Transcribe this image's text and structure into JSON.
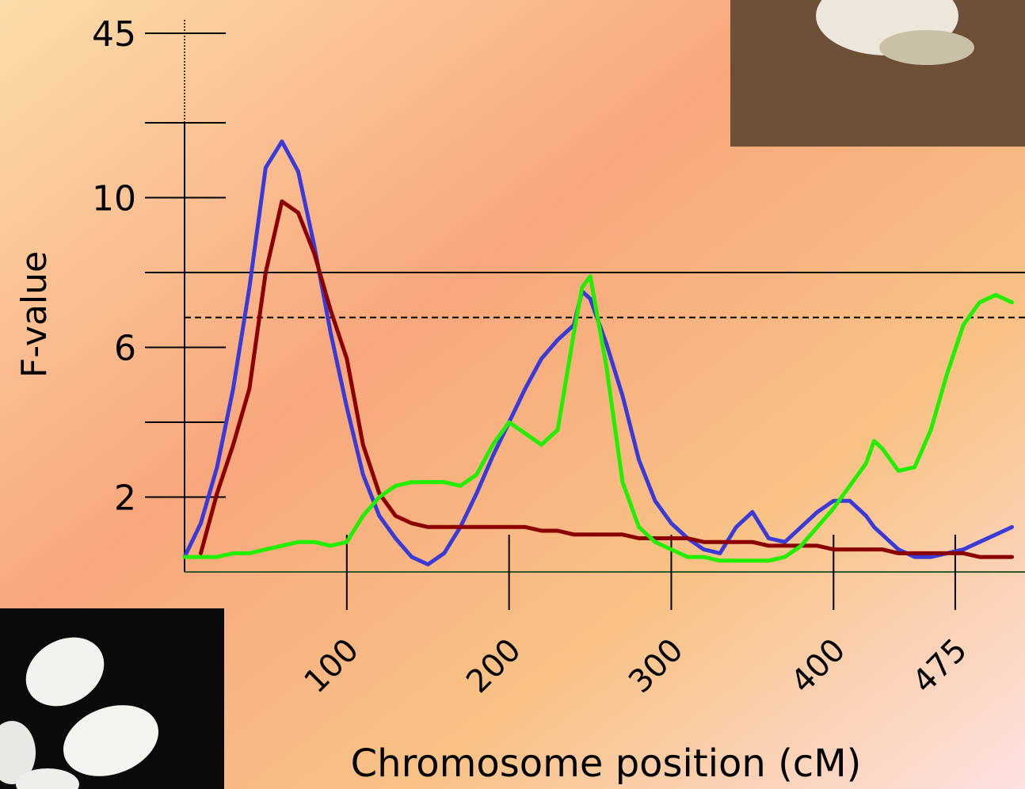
{
  "chart_data": {
    "type": "line",
    "xlabel": "Chromosome position (cM)",
    "ylabel": "F-value",
    "x": [
      0,
      10,
      20,
      30,
      40,
      50,
      60,
      70,
      80,
      90,
      100,
      110,
      120,
      130,
      140,
      150,
      160,
      170,
      180,
      190,
      200,
      210,
      220,
      230,
      240,
      245,
      250,
      260,
      270,
      280,
      290,
      300,
      310,
      320,
      330,
      340,
      350,
      360,
      370,
      380,
      390,
      400,
      410,
      420,
      425,
      430,
      440,
      450,
      460,
      470,
      480,
      490,
      500,
      510
    ],
    "series": [
      {
        "color": "#3a3ad8",
        "values": [
          0.4,
          1.3,
          2.8,
          4.9,
          7.6,
          10.8,
          11.5,
          10.7,
          8.7,
          6.4,
          4.4,
          2.6,
          1.5,
          0.9,
          0.4,
          0.2,
          0.5,
          1.2,
          2.1,
          3.1,
          4.0,
          4.9,
          5.7,
          6.2,
          6.6,
          7.5,
          7.3,
          6.1,
          4.7,
          3.0,
          1.9,
          1.3,
          0.9,
          0.6,
          0.5,
          1.2,
          1.6,
          0.9,
          0.8,
          1.2,
          1.6,
          1.9,
          1.9,
          1.5,
          1.2,
          1.0,
          0.6,
          0.4,
          0.4,
          0.5,
          0.6,
          0.8,
          1.0,
          1.2
        ]
      },
      {
        "color": "#8b0000",
        "values": [
          null,
          0.5,
          2.1,
          3.4,
          4.9,
          8.0,
          9.9,
          9.6,
          8.5,
          7.0,
          5.7,
          3.4,
          2.1,
          1.5,
          1.3,
          1.2,
          1.2,
          1.2,
          1.2,
          1.2,
          1.2,
          1.2,
          1.1,
          1.1,
          1.0,
          1.0,
          1.0,
          1.0,
          1.0,
          0.9,
          0.9,
          0.9,
          0.9,
          0.8,
          0.8,
          0.8,
          0.8,
          0.7,
          0.7,
          0.7,
          0.7,
          0.6,
          0.6,
          0.6,
          0.6,
          0.6,
          0.5,
          0.5,
          0.5,
          0.5,
          0.5,
          0.4,
          0.4,
          0.4
        ]
      },
      {
        "color": "#22ee00",
        "values": [
          0.4,
          0.4,
          0.4,
          0.5,
          0.5,
          0.6,
          0.7,
          0.8,
          0.8,
          0.7,
          0.8,
          1.5,
          2.0,
          2.3,
          2.4,
          2.4,
          2.4,
          2.3,
          2.6,
          3.4,
          4.0,
          3.7,
          3.4,
          3.8,
          6.4,
          7.6,
          7.9,
          5.5,
          2.4,
          1.2,
          0.8,
          0.6,
          0.4,
          0.4,
          0.3,
          0.3,
          0.3,
          0.3,
          0.4,
          0.7,
          1.2,
          1.7,
          2.3,
          2.9,
          3.5,
          3.3,
          2.7,
          2.8,
          3.8,
          5.3,
          6.6,
          7.2,
          7.4,
          7.2
        ]
      }
    ],
    "xlim": [
      0,
      518
    ],
    "xticks": [
      100,
      200,
      300,
      400,
      475
    ],
    "ylim": [
      0,
      45
    ],
    "ybreak": 12,
    "yticks": [
      2,
      6,
      10,
      45
    ],
    "yminor_ticks": [
      4,
      8,
      12
    ],
    "thresholds": [
      {
        "value": 8,
        "style": "solid"
      },
      {
        "value": 6.8,
        "style": "dashed"
      }
    ]
  }
}
